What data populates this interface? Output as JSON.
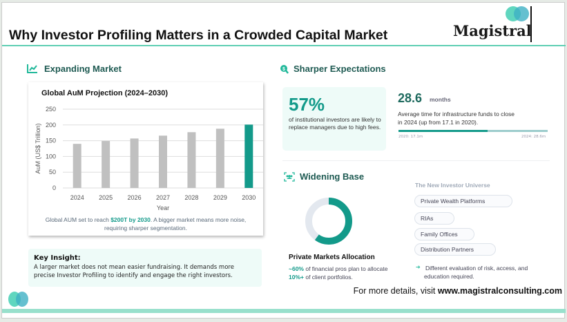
{
  "header": {
    "title": "Why Investor Profiling Matters in a Crowded Capital Market",
    "logo_text": "Magistral"
  },
  "colors": {
    "accent": "#139a8a",
    "bar": "#c0c0c0",
    "heading": "#1e5a52",
    "logo_teal": "#4fd1b8",
    "logo_blue": "#52b4c8"
  },
  "expanding": {
    "heading": "Expanding Market",
    "icon": "line-chart-icon",
    "caption_pre": "Global AUM set to reach ",
    "caption_highlight": "$200T by 2030",
    "caption_post": ". A bigger market means more noise, requiring sharper segmentation.",
    "insight_title": "Key Insight:",
    "insight_text": "A larger market does not mean easier fundraising. It demands more precise Investor Profiling to identify and engage the right investors."
  },
  "chart_data": {
    "type": "bar",
    "title": "Global AuM Projection (2024–2030)",
    "categories": [
      "2024",
      "2025",
      "2026",
      "2027",
      "2028",
      "2029",
      "2030"
    ],
    "values": [
      140,
      149,
      157,
      166,
      177,
      188,
      201
    ],
    "highlight": "2030",
    "xlabel": "Year",
    "ylabel": "AuM (US$ Trillion)",
    "ylim": [
      0,
      250
    ],
    "yticks": [
      0,
      50,
      100,
      150,
      200,
      250
    ],
    "grid": true
  },
  "sharper": {
    "heading": "Sharper Expectations",
    "icon": "search-dollar-icon",
    "stat_value": "57%",
    "stat_text": "of institutional investors are likely to replace managers due to high fees.",
    "months_value": "28.6",
    "months_unit": "months",
    "months_text": "Average time for infrastructure funds to close in 2024 (up from 17.1 in 2020).",
    "progress_fraction": 0.598,
    "progress_start_label": "2020: 17.1m",
    "progress_end_label": "2024: 28.6m"
  },
  "widening": {
    "heading": "Widening Base",
    "icon": "users-scan-icon",
    "donut_fraction": 0.6,
    "alloc_title": "Private Markets Allocation",
    "alloc_hl1": "~60%",
    "alloc_mid": " of financial pros plan to allocate ",
    "alloc_hl2": "10%+",
    "alloc_post": " of client portfolios.",
    "universe_title": "The New Investor Universe",
    "universe": [
      "Private Wealth Platforms",
      "RIAs",
      "Family Offices",
      "Distribution Partners"
    ],
    "note": "Different evaluation of risk, access, and education required."
  },
  "footer": {
    "text": "For more details, visit ",
    "url": "www.magistralconsulting.com"
  }
}
